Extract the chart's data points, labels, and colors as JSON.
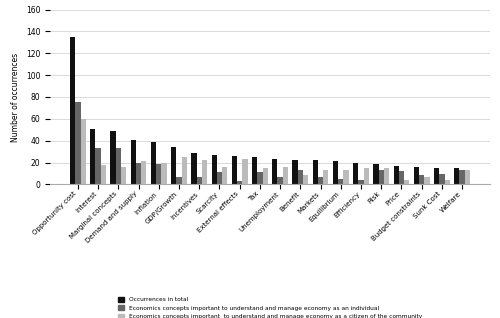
{
  "categories": [
    "Opportunity cost",
    "Interest",
    "Marginal concepts",
    "Demand and supply",
    "Inflation",
    "GDP/Growth",
    "Incentives",
    "Scarcity",
    "External effects",
    "Tax",
    "Unemployment",
    "Benefit",
    "Markets",
    "Equilibrium",
    "Efficiency",
    "Risk",
    "Price",
    "Budget constraints",
    "Sunk Cost",
    "Welfare"
  ],
  "occurrences_total": [
    135,
    51,
    49,
    41,
    39,
    34,
    29,
    27,
    26,
    25,
    23,
    22,
    22,
    21,
    20,
    19,
    17,
    16,
    15,
    15
  ],
  "individual": [
    75,
    33,
    33,
    20,
    19,
    7,
    7,
    11,
    3,
    11,
    7,
    13,
    7,
    5,
    4,
    13,
    12,
    9,
    10,
    13
  ],
  "citizen": [
    60,
    18,
    16,
    21,
    20,
    25,
    22,
    16,
    23,
    15,
    16,
    9,
    13,
    13,
    15,
    15,
    4,
    7,
    4,
    13
  ],
  "color_total": "#111111",
  "color_individual": "#666666",
  "color_citizen": "#bbbbbb",
  "ylabel": "Number of occurrences",
  "ylim": [
    0,
    160
  ],
  "yticks": [
    0,
    20,
    40,
    60,
    80,
    100,
    120,
    140,
    160
  ],
  "legend_total": "Occurrences in total",
  "legend_individual": "Economics concepts important to understand and manage economy as an individual",
  "legend_citizen": "Economics concepts important  to understand and manage economy as a citizen of the community",
  "bar_width": 0.26,
  "grid_color": "#cccccc"
}
